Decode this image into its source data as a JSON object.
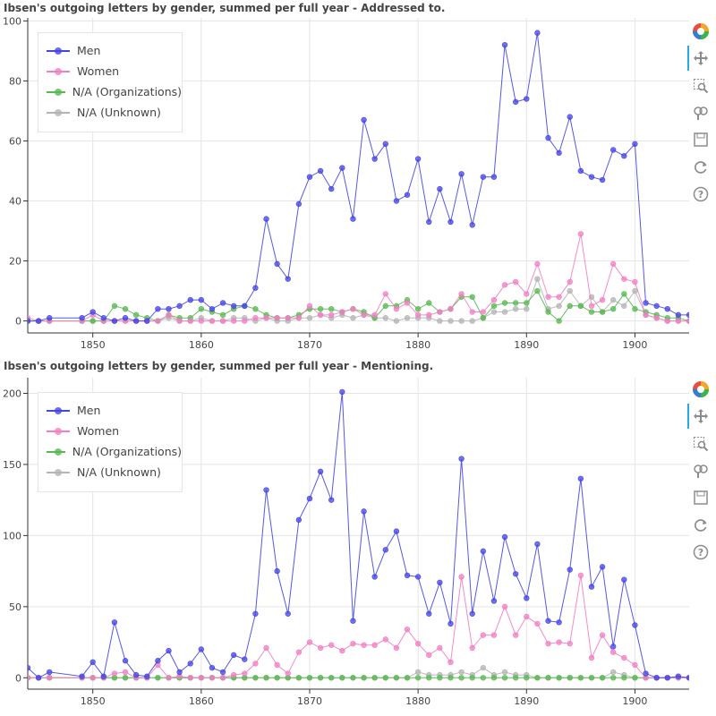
{
  "chart_data": [
    {
      "type": "line",
      "title": "Ibsen's outgoing letters by gender, summed per full year - Addressed to.",
      "xlim": [
        1844,
        1905
      ],
      "ylim": [
        -4,
        101
      ],
      "xticks": [
        1850,
        1860,
        1870,
        1880,
        1890,
        1900
      ],
      "yticks": [
        0,
        20,
        40,
        60,
        80,
        100
      ],
      "legend_position": "top-left",
      "grid": true,
      "series": [
        {
          "name": "Men",
          "color": "#4545e6",
          "x": [
            1844,
            1845,
            1846,
            1849,
            1850,
            1851,
            1852,
            1853,
            1854,
            1855,
            1856,
            1857,
            1858,
            1859,
            1860,
            1861,
            1862,
            1863,
            1864,
            1865,
            1866,
            1867,
            1868,
            1869,
            1870,
            1871,
            1872,
            1873,
            1874,
            1875,
            1876,
            1877,
            1878,
            1879,
            1880,
            1881,
            1882,
            1883,
            1884,
            1885,
            1886,
            1887,
            1888,
            1889,
            1890,
            1891,
            1892,
            1893,
            1894,
            1895,
            1896,
            1897,
            1898,
            1899,
            1900,
            1901,
            1902,
            1903,
            1904,
            1905
          ],
          "y": [
            0,
            0,
            1,
            1,
            3,
            1,
            0,
            1,
            0,
            0,
            4,
            4,
            5,
            7,
            7,
            4,
            6,
            5,
            5,
            11,
            34,
            19,
            14,
            39,
            48,
            50,
            44,
            51,
            34,
            67,
            54,
            59,
            40,
            42,
            54,
            33,
            44,
            33,
            49,
            32,
            48,
            48,
            92,
            73,
            74,
            96,
            61,
            56,
            68,
            50,
            48,
            47,
            57,
            55,
            59,
            6,
            5,
            4,
            2,
            2
          ]
        },
        {
          "name": "Women",
          "color": "#f27fc4",
          "x": [
            1844,
            1845,
            1846,
            1849,
            1850,
            1851,
            1852,
            1853,
            1854,
            1855,
            1856,
            1857,
            1858,
            1859,
            1860,
            1861,
            1862,
            1863,
            1864,
            1865,
            1866,
            1867,
            1868,
            1869,
            1870,
            1871,
            1872,
            1873,
            1874,
            1875,
            1876,
            1877,
            1878,
            1879,
            1880,
            1881,
            1882,
            1883,
            1884,
            1885,
            1886,
            1887,
            1888,
            1889,
            1890,
            1891,
            1892,
            1893,
            1894,
            1895,
            1896,
            1897,
            1898,
            1899,
            1900,
            1901,
            1902,
            1903,
            1904,
            1905
          ],
          "y": [
            1,
            0,
            0,
            0,
            2,
            0,
            0,
            0,
            0,
            0,
            0,
            2,
            0,
            0,
            0,
            0,
            0,
            0,
            0,
            1,
            1,
            1,
            1,
            1,
            5,
            2,
            2,
            3,
            4,
            2,
            2,
            9,
            4,
            6,
            2,
            2,
            3,
            4,
            9,
            3,
            3,
            7,
            12,
            13,
            9,
            19,
            8,
            8,
            13,
            29,
            5,
            7,
            19,
            14,
            13,
            2,
            1,
            0,
            0,
            0
          ]
        },
        {
          "name": "N/A (Organizations)",
          "color": "#5ab852",
          "x": [
            1844,
            1845,
            1846,
            1849,
            1850,
            1851,
            1852,
            1853,
            1854,
            1855,
            1856,
            1857,
            1858,
            1859,
            1860,
            1861,
            1862,
            1863,
            1864,
            1865,
            1866,
            1867,
            1868,
            1869,
            1870,
            1871,
            1872,
            1873,
            1874,
            1875,
            1876,
            1877,
            1878,
            1879,
            1880,
            1881,
            1882,
            1883,
            1884,
            1885,
            1886,
            1887,
            1888,
            1889,
            1890,
            1891,
            1892,
            1893,
            1894,
            1895,
            1896,
            1897,
            1898,
            1899,
            1900,
            1901,
            1902,
            1903,
            1904,
            1905
          ],
          "y": [
            0,
            0,
            0,
            0,
            0,
            0,
            5,
            4,
            2,
            1,
            0,
            2,
            1,
            1,
            4,
            3,
            2,
            4,
            5,
            4,
            2,
            1,
            1,
            2,
            4,
            4,
            4,
            3,
            4,
            3,
            1,
            5,
            5,
            7,
            4,
            6,
            3,
            4,
            8,
            8,
            1,
            5,
            6,
            6,
            6,
            10,
            3,
            0,
            5,
            5,
            3,
            3,
            4,
            9,
            4,
            3,
            2,
            1,
            1,
            0
          ]
        },
        {
          "name": "N/A (Unknown)",
          "color": "#b4b4b4",
          "x": [
            1844,
            1845,
            1846,
            1849,
            1850,
            1851,
            1852,
            1853,
            1854,
            1855,
            1856,
            1857,
            1858,
            1859,
            1860,
            1861,
            1862,
            1863,
            1864,
            1865,
            1866,
            1867,
            1868,
            1869,
            1870,
            1871,
            1872,
            1873,
            1874,
            1875,
            1876,
            1877,
            1878,
            1879,
            1880,
            1881,
            1882,
            1883,
            1884,
            1885,
            1886,
            1887,
            1888,
            1889,
            1890,
            1891,
            1892,
            1893,
            1894,
            1895,
            1896,
            1897,
            1898,
            1899,
            1900,
            1901,
            1902,
            1903,
            1904,
            1905
          ],
          "y": [
            0,
            0,
            0,
            0,
            0,
            0,
            0,
            0,
            0,
            0,
            0,
            1,
            0,
            0,
            1,
            0,
            0,
            1,
            1,
            0,
            1,
            0,
            0,
            1,
            1,
            2,
            1,
            2,
            1,
            2,
            1,
            1,
            0,
            1,
            1,
            1,
            0,
            0,
            0,
            0,
            1,
            3,
            3,
            4,
            4,
            14,
            4,
            5,
            10,
            5,
            8,
            3,
            7,
            5,
            10,
            2,
            1,
            0,
            0,
            0
          ]
        }
      ]
    },
    {
      "type": "line",
      "title": "Ibsen's outgoing letters by gender, summed per full year - Mentioning.",
      "xlim": [
        1844,
        1905
      ],
      "ylim": [
        -8,
        211
      ],
      "xticks": [
        1850,
        1860,
        1870,
        1880,
        1890,
        1900
      ],
      "yticks": [
        0,
        50,
        100,
        150,
        200
      ],
      "legend_position": "top-left",
      "grid": true,
      "series": [
        {
          "name": "Men",
          "color": "#4545e6",
          "x": [
            1844,
            1845,
            1846,
            1849,
            1850,
            1851,
            1852,
            1853,
            1854,
            1855,
            1856,
            1857,
            1858,
            1859,
            1860,
            1861,
            1862,
            1863,
            1864,
            1865,
            1866,
            1867,
            1868,
            1869,
            1870,
            1871,
            1872,
            1873,
            1874,
            1875,
            1876,
            1877,
            1878,
            1879,
            1880,
            1881,
            1882,
            1883,
            1884,
            1885,
            1886,
            1887,
            1888,
            1889,
            1890,
            1891,
            1892,
            1893,
            1894,
            1895,
            1896,
            1897,
            1898,
            1899,
            1900,
            1901,
            1902,
            1903,
            1904,
            1905
          ],
          "y": [
            7,
            0,
            4,
            1,
            11,
            1,
            39,
            12,
            2,
            1,
            12,
            19,
            4,
            10,
            20,
            7,
            4,
            16,
            13,
            45,
            132,
            75,
            45,
            111,
            126,
            145,
            125,
            201,
            40,
            117,
            71,
            90,
            103,
            72,
            71,
            45,
            67,
            38,
            154,
            45,
            89,
            54,
            99,
            73,
            56,
            94,
            40,
            39,
            76,
            140,
            64,
            78,
            22,
            69,
            37,
            3,
            0,
            0,
            1,
            0
          ]
        },
        {
          "name": "Women",
          "color": "#f27fc4",
          "x": [
            1844,
            1845,
            1846,
            1849,
            1850,
            1851,
            1852,
            1853,
            1854,
            1855,
            1856,
            1857,
            1858,
            1859,
            1860,
            1861,
            1862,
            1863,
            1864,
            1865,
            1866,
            1867,
            1868,
            1869,
            1870,
            1871,
            1872,
            1873,
            1874,
            1875,
            1876,
            1877,
            1878,
            1879,
            1880,
            1881,
            1882,
            1883,
            1884,
            1885,
            1886,
            1887,
            1888,
            1889,
            1890,
            1891,
            1892,
            1893,
            1894,
            1895,
            1896,
            1897,
            1898,
            1899,
            1900,
            1901,
            1902,
            1903,
            1904,
            1905
          ],
          "y": [
            0,
            0,
            0,
            0,
            0,
            0,
            3,
            4,
            0,
            0,
            9,
            0,
            1,
            0,
            0,
            0,
            0,
            2,
            3,
            10,
            21,
            9,
            3,
            18,
            25,
            21,
            23,
            19,
            24,
            23,
            23,
            27,
            21,
            34,
            24,
            16,
            21,
            11,
            71,
            21,
            30,
            30,
            50,
            30,
            43,
            38,
            24,
            25,
            24,
            72,
            14,
            30,
            18,
            14,
            9,
            0,
            0,
            0,
            0,
            0
          ]
        },
        {
          "name": "N/A (Organizations)",
          "color": "#5ab852",
          "x": [
            1844,
            1845,
            1846,
            1849,
            1850,
            1851,
            1852,
            1853,
            1854,
            1855,
            1856,
            1857,
            1858,
            1859,
            1860,
            1861,
            1862,
            1863,
            1864,
            1865,
            1866,
            1867,
            1868,
            1869,
            1870,
            1871,
            1872,
            1873,
            1874,
            1875,
            1876,
            1877,
            1878,
            1879,
            1880,
            1881,
            1882,
            1883,
            1884,
            1885,
            1886,
            1887,
            1888,
            1889,
            1890,
            1891,
            1892,
            1893,
            1894,
            1895,
            1896,
            1897,
            1898,
            1899,
            1900,
            1901,
            1902,
            1903,
            1904,
            1905
          ],
          "y": [
            0,
            0,
            0,
            0,
            0,
            0,
            0,
            0,
            0,
            0,
            0,
            0,
            0,
            0,
            0,
            0,
            0,
            0,
            0,
            0,
            0,
            0,
            0,
            0,
            0,
            0,
            0,
            0,
            0,
            0,
            0,
            0,
            0,
            0,
            0,
            0,
            0,
            0,
            0,
            0,
            0,
            0,
            0,
            0,
            0,
            0,
            0,
            0,
            0,
            0,
            0,
            0,
            0,
            0,
            0,
            0,
            0,
            0,
            0,
            0
          ]
        },
        {
          "name": "N/A (Unknown)",
          "color": "#b4b4b4",
          "x": [
            1844,
            1845,
            1846,
            1849,
            1850,
            1851,
            1852,
            1853,
            1854,
            1855,
            1856,
            1857,
            1858,
            1859,
            1860,
            1861,
            1862,
            1863,
            1864,
            1865,
            1866,
            1867,
            1868,
            1869,
            1870,
            1871,
            1872,
            1873,
            1874,
            1875,
            1876,
            1877,
            1878,
            1879,
            1880,
            1881,
            1882,
            1883,
            1884,
            1885,
            1886,
            1887,
            1888,
            1889,
            1890,
            1891,
            1892,
            1893,
            1894,
            1895,
            1896,
            1897,
            1898,
            1899,
            1900,
            1901,
            1902,
            1903,
            1904,
            1905
          ],
          "y": [
            0,
            0,
            0,
            0,
            0,
            0,
            0,
            0,
            0,
            0,
            0,
            0,
            0,
            0,
            0,
            0,
            0,
            0,
            0,
            0,
            0,
            0,
            0,
            0,
            0,
            0,
            0,
            0,
            0,
            0,
            0,
            0,
            0,
            0,
            4,
            2,
            2,
            2,
            4,
            2,
            7,
            2,
            4,
            2,
            2,
            0,
            0,
            0,
            0,
            0,
            0,
            0,
            4,
            2,
            0,
            0,
            0,
            0,
            0,
            0
          ]
        }
      ]
    }
  ],
  "toolbar": {
    "tools": [
      "bokeh-logo-icon",
      "pan-icon",
      "box-zoom-icon",
      "wheel-zoom-icon",
      "save-icon",
      "reset-icon",
      "help-icon"
    ]
  }
}
